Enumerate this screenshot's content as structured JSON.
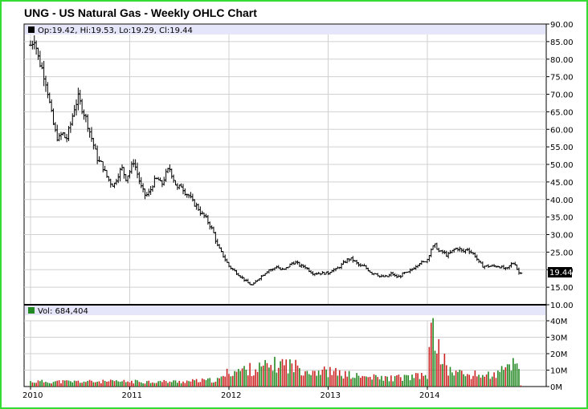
{
  "chart_data": [
    {
      "type": "ohlc",
      "title": "UNG - US Natural Gas - Weekly OHLC Chart",
      "legend": "Op:19.42, Hi:19.53, Lo:19.29, Cl:19.44",
      "last_price_label": "19.44",
      "ylim": [
        10,
        90
      ],
      "yticks": [
        "10.00",
        "15.00",
        "20.00",
        "25.00",
        "30.00",
        "35.00",
        "40.00",
        "45.00",
        "50.00",
        "55.00",
        "60.00",
        "65.00",
        "70.00",
        "75.00",
        "80.00",
        "85.00",
        "90.00"
      ],
      "x_ticks": [
        "2010",
        "2011",
        "2012",
        "2013",
        "2014"
      ],
      "x_years_range": [
        2010.0,
        2014.95
      ],
      "close_anchors": [
        [
          2010.0,
          84
        ],
        [
          2010.04,
          86
        ],
        [
          2010.08,
          80
        ],
        [
          2010.12,
          77
        ],
        [
          2010.16,
          73
        ],
        [
          2010.2,
          66
        ],
        [
          2010.24,
          60
        ],
        [
          2010.28,
          57
        ],
        [
          2010.32,
          59
        ],
        [
          2010.36,
          57
        ],
        [
          2010.4,
          61
        ],
        [
          2010.44,
          66
        ],
        [
          2010.48,
          69
        ],
        [
          2010.52,
          66
        ],
        [
          2010.56,
          63
        ],
        [
          2010.6,
          59
        ],
        [
          2010.64,
          55
        ],
        [
          2010.68,
          51
        ],
        [
          2010.72,
          50
        ],
        [
          2010.76,
          47
        ],
        [
          2010.8,
          45
        ],
        [
          2010.84,
          44
        ],
        [
          2010.88,
          47
        ],
        [
          2010.92,
          49
        ],
        [
          2010.96,
          46
        ],
        [
          2011.0,
          48
        ],
        [
          2011.04,
          51
        ],
        [
          2011.08,
          47
        ],
        [
          2011.12,
          43
        ],
        [
          2011.16,
          41
        ],
        [
          2011.2,
          42
        ],
        [
          2011.24,
          45
        ],
        [
          2011.28,
          46
        ],
        [
          2011.32,
          44
        ],
        [
          2011.36,
          47
        ],
        [
          2011.4,
          49
        ],
        [
          2011.44,
          46
        ],
        [
          2011.48,
          43
        ],
        [
          2011.52,
          44
        ],
        [
          2011.56,
          42
        ],
        [
          2011.6,
          41
        ],
        [
          2011.64,
          39
        ],
        [
          2011.68,
          38
        ],
        [
          2011.72,
          36
        ],
        [
          2011.76,
          35
        ],
        [
          2011.8,
          33
        ],
        [
          2011.84,
          31
        ],
        [
          2011.88,
          27
        ],
        [
          2011.92,
          25
        ],
        [
          2011.96,
          23
        ],
        [
          2012.0,
          21
        ],
        [
          2012.04,
          20
        ],
        [
          2012.08,
          19
        ],
        [
          2012.12,
          18
        ],
        [
          2012.16,
          17
        ],
        [
          2012.2,
          16
        ],
        [
          2012.24,
          15.5
        ],
        [
          2012.28,
          17
        ],
        [
          2012.32,
          18
        ],
        [
          2012.36,
          19
        ],
        [
          2012.4,
          20
        ],
        [
          2012.44,
          20
        ],
        [
          2012.48,
          21
        ],
        [
          2012.52,
          20
        ],
        [
          2012.56,
          20
        ],
        [
          2012.6,
          21
        ],
        [
          2012.64,
          22
        ],
        [
          2012.68,
          22
        ],
        [
          2012.72,
          21
        ],
        [
          2012.76,
          21
        ],
        [
          2012.8,
          20
        ],
        [
          2012.84,
          19
        ],
        [
          2012.88,
          19
        ],
        [
          2012.92,
          19
        ],
        [
          2012.96,
          19
        ],
        [
          2013.0,
          19
        ],
        [
          2013.04,
          20
        ],
        [
          2013.08,
          20
        ],
        [
          2013.12,
          21
        ],
        [
          2013.16,
          22
        ],
        [
          2013.2,
          23
        ],
        [
          2013.24,
          23
        ],
        [
          2013.28,
          22
        ],
        [
          2013.32,
          21
        ],
        [
          2013.36,
          21
        ],
        [
          2013.4,
          20
        ],
        [
          2013.44,
          19
        ],
        [
          2013.48,
          19
        ],
        [
          2013.52,
          18
        ],
        [
          2013.56,
          18
        ],
        [
          2013.6,
          18
        ],
        [
          2013.64,
          19
        ],
        [
          2013.68,
          18
        ],
        [
          2013.72,
          18
        ],
        [
          2013.76,
          19
        ],
        [
          2013.8,
          19
        ],
        [
          2013.84,
          20
        ],
        [
          2013.88,
          21
        ],
        [
          2013.92,
          22
        ],
        [
          2013.96,
          22
        ],
        [
          2014.0,
          23
        ],
        [
          2014.04,
          26
        ],
        [
          2014.08,
          27
        ],
        [
          2014.12,
          25
        ],
        [
          2014.16,
          25
        ],
        [
          2014.2,
          24
        ],
        [
          2014.24,
          25
        ],
        [
          2014.28,
          26
        ],
        [
          2014.32,
          26
        ],
        [
          2014.36,
          25
        ],
        [
          2014.4,
          26
        ],
        [
          2014.44,
          25
        ],
        [
          2014.48,
          24
        ],
        [
          2014.52,
          22
        ],
        [
          2014.56,
          21
        ],
        [
          2014.6,
          21
        ],
        [
          2014.64,
          21
        ],
        [
          2014.68,
          21
        ],
        [
          2014.72,
          21
        ],
        [
          2014.76,
          20.5
        ],
        [
          2014.8,
          20
        ],
        [
          2014.84,
          21.5
        ],
        [
          2014.88,
          22
        ],
        [
          2014.92,
          19
        ],
        [
          2014.95,
          19.44
        ]
      ]
    },
    {
      "type": "bar",
      "title": "",
      "legend": "Vol: 684,404",
      "ylim": [
        0,
        40
      ],
      "yticks": [
        "0M",
        "10M",
        "20M",
        "30M",
        "40M"
      ],
      "units": "M",
      "volume_anchors": [
        [
          2010.0,
          3
        ],
        [
          2010.5,
          3
        ],
        [
          2011.0,
          3
        ],
        [
          2011.5,
          3
        ],
        [
          2011.9,
          4
        ],
        [
          2012.0,
          9
        ],
        [
          2012.3,
          11
        ],
        [
          2012.55,
          14
        ],
        [
          2012.8,
          10
        ],
        [
          2013.0,
          9
        ],
        [
          2013.3,
          6
        ],
        [
          2013.6,
          5
        ],
        [
          2013.9,
          6
        ],
        [
          2014.0,
          7
        ],
        [
          2014.04,
          33
        ],
        [
          2014.08,
          28
        ],
        [
          2014.14,
          20
        ],
        [
          2014.2,
          10
        ],
        [
          2014.4,
          7
        ],
        [
          2014.7,
          7
        ],
        [
          2014.88,
          15
        ],
        [
          2014.92,
          12
        ],
        [
          2014.95,
          0.7
        ]
      ]
    }
  ],
  "colors": {
    "frame": "#33dd33",
    "legend_band": "#e6e6fa",
    "grid": "#d0d0d0",
    "bar_up": "#228822",
    "bar_down": "#cc2222",
    "ohlc": "#000000"
  }
}
